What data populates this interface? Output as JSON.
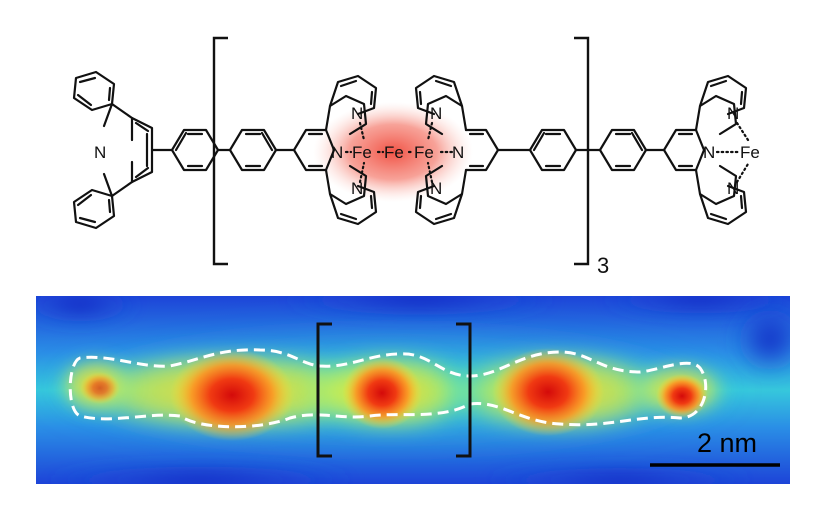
{
  "structure": {
    "repeat_count": "3",
    "atoms": {
      "iron": "Fe",
      "nitrogen": "N"
    },
    "highlight_color": "#f06a5a"
  },
  "stm_image": {
    "scale_bar_label": "2 nm",
    "outline_color": "#ffffff",
    "bracket_color": "#111111",
    "colormap": [
      "#1a2fd6",
      "#1f9fe8",
      "#33e0c8",
      "#c8f040",
      "#ffe030",
      "#ff8c20",
      "#e82010"
    ]
  }
}
